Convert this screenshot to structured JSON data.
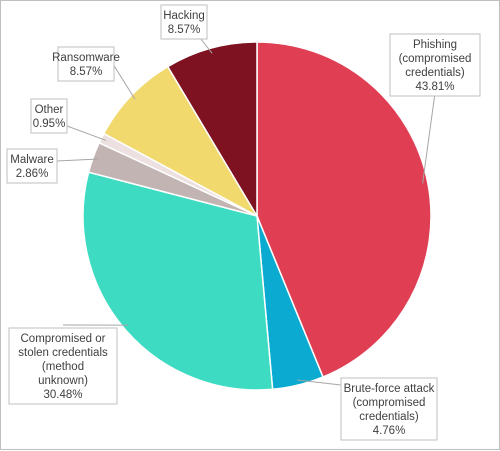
{
  "chart_data": {
    "type": "pie",
    "title": "",
    "slices": [
      {
        "label": "Phishing (compromised credentials)",
        "label_lines": [
          "Phishing",
          "(compromised",
          "credentials)"
        ],
        "value": 43.81,
        "value_label": "43.81%",
        "color": "#e03e52"
      },
      {
        "label": "Brute-force attack (compromised credentials)",
        "label_lines": [
          "Brute-force attack",
          "(compromised",
          "credentials)"
        ],
        "value": 4.76,
        "value_label": "4.76%",
        "color": "#0baad0"
      },
      {
        "label": "Compromised or stolen credentials (method unknown)",
        "label_lines": [
          "Compromised or",
          "stolen credentials",
          "(method",
          "unknown)"
        ],
        "value": 30.48,
        "value_label": "30.48%",
        "color": "#3ddbc2"
      },
      {
        "label": "Malware",
        "label_lines": [
          "Malware"
        ],
        "value": 2.86,
        "value_label": "2.86%",
        "color": "#c3b4b4"
      },
      {
        "label": "Other",
        "label_lines": [
          "Other"
        ],
        "value": 0.95,
        "value_label": "0.95%",
        "color": "#ece0e0"
      },
      {
        "label": "Ransomware",
        "label_lines": [
          "Ransomware"
        ],
        "value": 8.57,
        "value_label": "8.57%",
        "color": "#f1d96e"
      },
      {
        "label": "Hacking",
        "label_lines": [
          "Hacking"
        ],
        "value": 8.57,
        "value_label": "8.57%",
        "color": "#7e1220"
      }
    ],
    "start_angle": "12 o'clock",
    "direction": "clockwise",
    "legend": "none (data labels with leader lines)"
  }
}
